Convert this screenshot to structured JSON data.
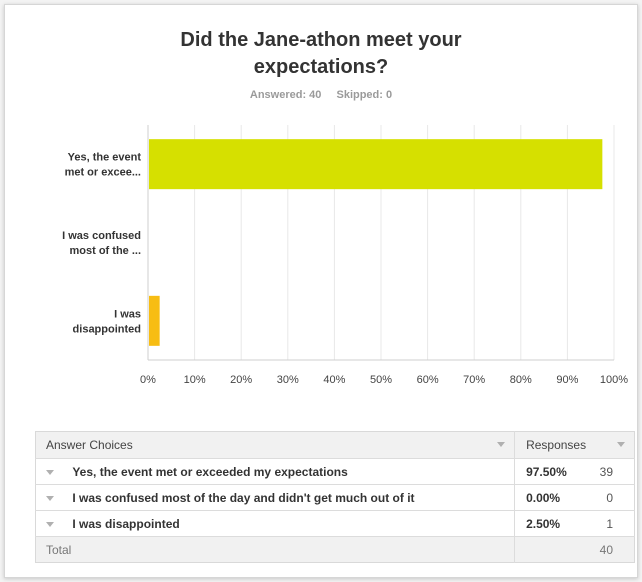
{
  "survey": {
    "title_line1": "Did the Jane-athon meet your",
    "title_line2": "expectations?",
    "answered": "Answered: 40",
    "skipped": "Skipped: 0"
  },
  "chart_data": {
    "type": "bar",
    "orientation": "horizontal",
    "title": "Did the Jane-athon meet your expectations?",
    "categories": [
      "Yes, the event met or excee...",
      "I was confused most of the ...",
      "I was disappointed"
    ],
    "category_lines": [
      [
        "Yes, the event",
        "met or excee..."
      ],
      [
        "I was confused",
        "most of the ..."
      ],
      [
        "I was",
        "disappointed"
      ]
    ],
    "values": [
      97.5,
      0,
      2.5
    ],
    "colors": [
      "#d6e000",
      "#7f6bb5",
      "#f7bd13"
    ],
    "x_ticks": [
      "0%",
      "10%",
      "20%",
      "30%",
      "40%",
      "50%",
      "60%",
      "70%",
      "80%",
      "90%",
      "100%"
    ],
    "xlim": [
      0,
      100
    ],
    "grid": true
  },
  "table": {
    "headers": {
      "answer": "Answer Choices",
      "responses": "Responses"
    },
    "rows": [
      {
        "answer": "Yes, the event met or exceeded my expectations",
        "pct": "97.50%",
        "count": "39"
      },
      {
        "answer": "I was confused most of the day and didn't get much out of it",
        "pct": "0.00%",
        "count": "0"
      },
      {
        "answer": "I was disappointed",
        "pct": "2.50%",
        "count": "1"
      }
    ],
    "total_label": "Total",
    "total_count": "40"
  }
}
